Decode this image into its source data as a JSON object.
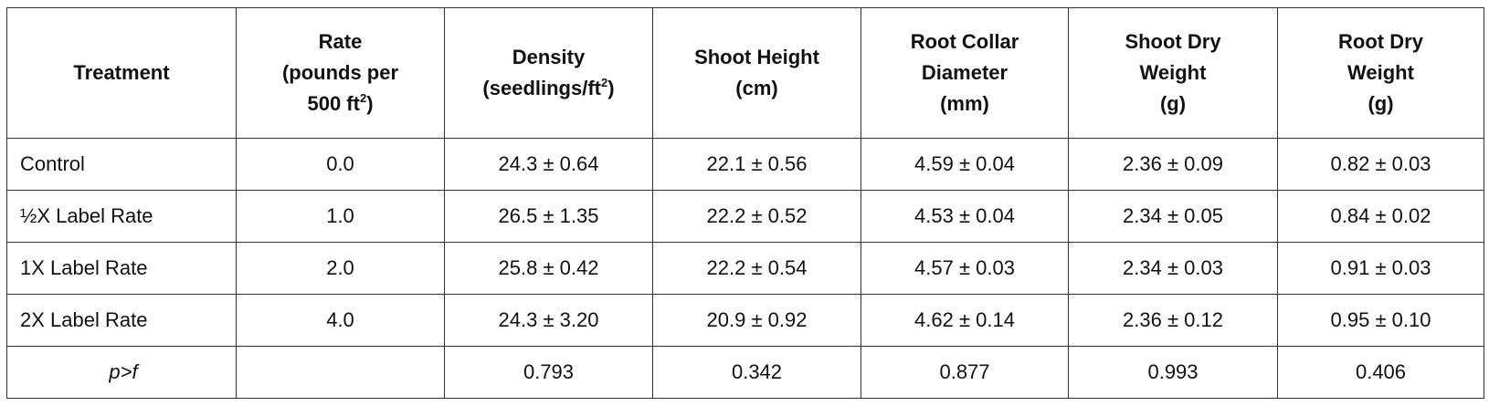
{
  "table": {
    "header": [
      [
        [
          {
            "text": "Treatment"
          }
        ]
      ],
      [
        [
          {
            "text": "Rate"
          }
        ],
        [
          {
            "text": "(pounds per"
          }
        ],
        [
          {
            "text": "500 ft"
          },
          {
            "sup": "2"
          },
          {
            "text": ")"
          }
        ]
      ],
      [
        [
          {
            "text": "Density"
          }
        ],
        [
          {
            "text": "(seedlings/ft"
          },
          {
            "sup": "2"
          },
          {
            "text": ")"
          }
        ]
      ],
      [
        [
          {
            "text": "Shoot Height"
          }
        ],
        [
          {
            "text": "(cm)"
          }
        ]
      ],
      [
        [
          {
            "text": "Root Collar"
          }
        ],
        [
          {
            "text": "Diameter"
          }
        ],
        [
          {
            "text": "(mm)"
          }
        ]
      ],
      [
        [
          {
            "text": "Shoot Dry"
          }
        ],
        [
          {
            "text": "Weight"
          }
        ],
        [
          {
            "text": "(g)"
          }
        ]
      ],
      [
        [
          {
            "text": "Root Dry"
          }
        ],
        [
          {
            "text": "Weight"
          }
        ],
        [
          {
            "text": "(g)"
          }
        ]
      ]
    ],
    "rows": [
      [
        "Control",
        "0.0",
        "24.3 ± 0.64",
        "22.1 ± 0.56",
        "4.59 ± 0.04",
        "2.36 ± 0.09",
        "0.82 ± 0.03"
      ],
      [
        "½X Label Rate",
        "1.0",
        "26.5 ± 1.35",
        "22.2 ± 0.52",
        "4.53 ± 0.04",
        "2.34 ± 0.05",
        "0.84 ± 0.02"
      ],
      [
        "1X Label Rate",
        "2.0",
        "25.8 ± 0.42",
        "22.2 ± 0.54",
        "4.57 ± 0.03",
        "2.34 ± 0.03",
        "0.91 ± 0.03"
      ],
      [
        "2X Label Rate",
        "4.0",
        "24.3 ± 3.20",
        "20.9 ± 0.92",
        "4.62 ± 0.14",
        "2.36 ± 0.12",
        "0.95 ± 0.10"
      ],
      [
        "p>f",
        null,
        "0.793",
        "0.342",
        "0.877",
        "0.993",
        "0.406"
      ]
    ]
  }
}
